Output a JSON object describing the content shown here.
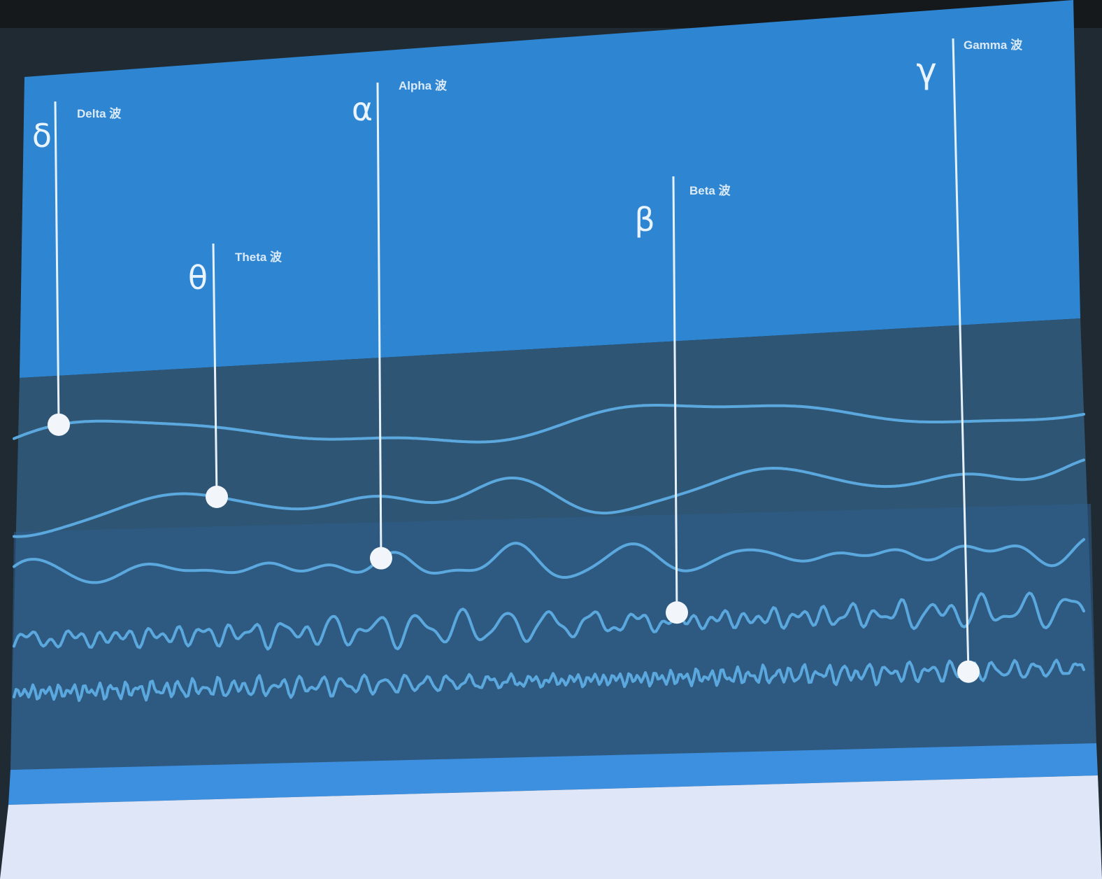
{
  "colors": {
    "frame": "#1f2a33",
    "sky": "#2e86d2",
    "wave_band": "#2f5574",
    "wave_band_low": "#2d5e8e",
    "wave_line": "#5aa8de",
    "bottom_bar": "#3d8fe0",
    "floor": "#dfe6f7",
    "marker": "#f2f6fa"
  },
  "bands": [
    {
      "id": "delta",
      "symbol": "δ",
      "label": "Delta 波"
    },
    {
      "id": "theta",
      "symbol": "θ",
      "label": "Theta 波"
    },
    {
      "id": "alpha",
      "symbol": "α",
      "label": "Alpha 波"
    },
    {
      "id": "beta",
      "symbol": "β",
      "label": "Beta 波"
    },
    {
      "id": "gamma",
      "symbol": "γ",
      "label": "Gamma 波"
    }
  ]
}
